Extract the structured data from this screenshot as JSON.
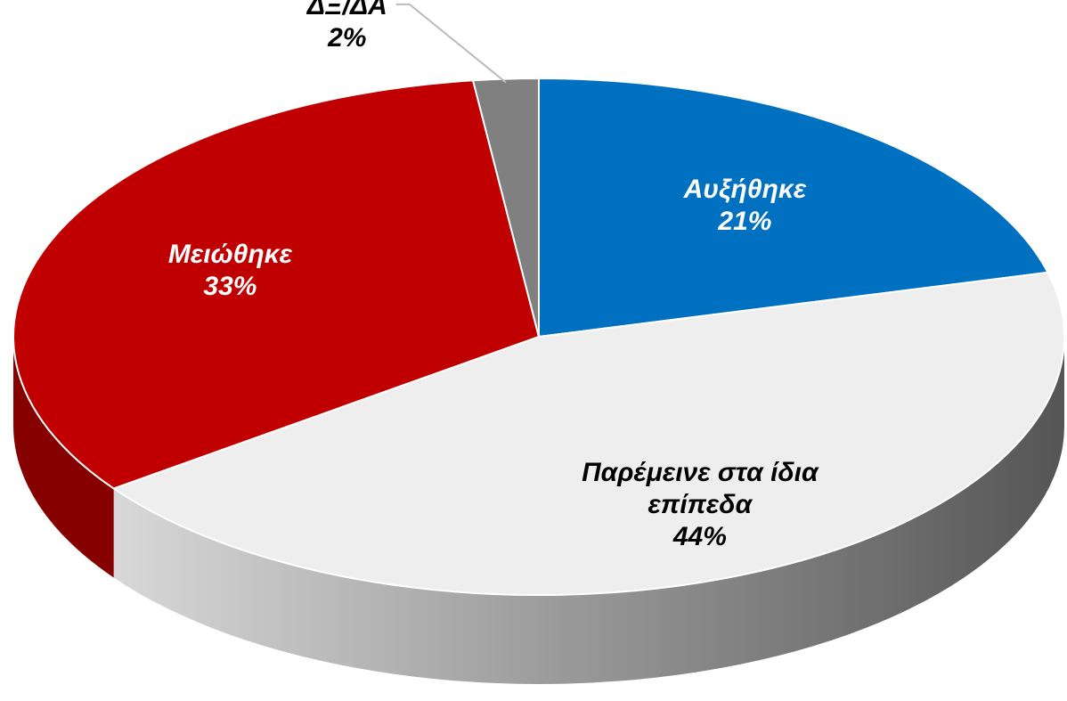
{
  "chart_data": {
    "type": "pie",
    "categories": [
      "Αυξήθηκε",
      "Παρέμεινε στα ίδια επίπεδα",
      "Μειώθηκε",
      "ΔΞ/ΔΑ"
    ],
    "values": [
      21,
      44,
      33,
      2
    ],
    "value_labels": [
      "21%",
      "44%",
      "33%",
      "2%"
    ],
    "colors": [
      "#0070c0",
      "#eeeeee",
      "#c00000",
      "#808080"
    ]
  }
}
